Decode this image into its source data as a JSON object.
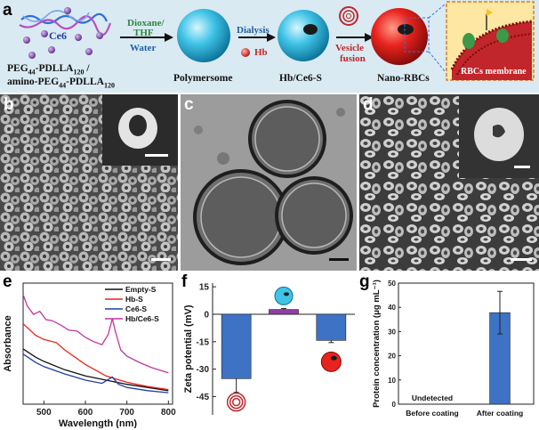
{
  "panels": {
    "a": "a",
    "b": "b",
    "c": "c",
    "d": "d",
    "e": "e",
    "f": "f",
    "g": "g"
  },
  "scheme": {
    "polymer_line1": "PEG",
    "polymer_line1_sub1": "44",
    "polymer_line1_mid": "-PDLLA",
    "polymer_line1_sub2": "120",
    "polymer_line1_end": " /",
    "polymer_line2": "amino-PEG",
    "polymer_line2_sub1": "44",
    "polymer_line2_mid": "-PDLLA",
    "polymer_line2_sub2": "120",
    "ce6": "Ce6",
    "step1_top": "Dioxane/",
    "step1_top2": "THF",
    "step1_bottom": "Water",
    "stage1": "Polymersome",
    "step2_top": "Dialysis",
    "step2_hb": "Hb",
    "stage2": "Hb/Ce6-S",
    "step3_line1": "Vesicle",
    "step3_line2": "fusion",
    "stage3": "Nano-RBCs",
    "membrane_label": "RBCs membrane"
  },
  "colors": {
    "accent_green": "#2b8a3e",
    "accent_blue": "#1f5fa6",
    "accent_red": "#c0262b",
    "bar_blue": "#3d72c4",
    "bar_purple": "#8e3fa3",
    "hbs_red": "#e8231d",
    "ce6s_blue": "#1f3fa6",
    "hbce6_magenta": "#c2359d"
  },
  "chart_data": [
    {
      "panel": "e",
      "type": "line",
      "xlabel": "Wavelength (nm)",
      "ylabel": "Absorbance",
      "xlim": [
        450,
        810
      ],
      "x_ticks": [
        500,
        600,
        700,
        800
      ],
      "y_tick_labels_shown": false,
      "series": [
        {
          "name": "Empty-S",
          "color": "#111111",
          "points": [
            [
              450,
              2.65
            ],
            [
              480,
              2.25
            ],
            [
              500,
              2.05
            ],
            [
              550,
              1.65
            ],
            [
              600,
              1.35
            ],
            [
              650,
              1.15
            ],
            [
              700,
              0.95
            ],
            [
              750,
              0.8
            ],
            [
              800,
              0.65
            ]
          ]
        },
        {
          "name": "Hb-S",
          "color": "#e8231d",
          "points": [
            [
              450,
              3.85
            ],
            [
              480,
              3.3
            ],
            [
              500,
              3.1
            ],
            [
              530,
              2.95
            ],
            [
              550,
              2.6
            ],
            [
              600,
              1.9
            ],
            [
              650,
              1.35
            ],
            [
              700,
              1.05
            ],
            [
              750,
              0.85
            ],
            [
              800,
              0.7
            ]
          ]
        },
        {
          "name": "Ce6-S",
          "color": "#1f3fa6",
          "points": [
            [
              450,
              2.4
            ],
            [
              480,
              2.0
            ],
            [
              500,
              1.8
            ],
            [
              550,
              1.45
            ],
            [
              600,
              1.15
            ],
            [
              640,
              1.0
            ],
            [
              665,
              1.3
            ],
            [
              680,
              0.95
            ],
            [
              700,
              0.8
            ],
            [
              750,
              0.65
            ],
            [
              800,
              0.55
            ]
          ]
        },
        {
          "name": "Hb/Ce6-S",
          "color": "#c2359d",
          "points": [
            [
              450,
              5.25
            ],
            [
              460,
              4.7
            ],
            [
              475,
              4.3
            ],
            [
              490,
              4.45
            ],
            [
              505,
              4.05
            ],
            [
              520,
              4.0
            ],
            [
              540,
              3.8
            ],
            [
              560,
              3.55
            ],
            [
              580,
              3.5
            ],
            [
              600,
              3.2
            ],
            [
              620,
              3.0
            ],
            [
              640,
              2.85
            ],
            [
              655,
              3.35
            ],
            [
              665,
              4.1
            ],
            [
              672,
              3.5
            ],
            [
              685,
              2.6
            ],
            [
              700,
              2.3
            ],
            [
              730,
              2.0
            ],
            [
              760,
              1.75
            ],
            [
              800,
              1.5
            ]
          ]
        }
      ]
    },
    {
      "panel": "f",
      "type": "bar",
      "ylabel": "Zeta potential (mV)",
      "ylim": [
        -55,
        17
      ],
      "y_ticks": [
        15,
        0,
        -15,
        -30,
        -45
      ],
      "categories": [
        "Nano-RBCs membrane vesicle",
        "Polymersome",
        "Nano-RBCs"
      ],
      "values": [
        -35.2,
        2.6,
        -14.3
      ],
      "errors": [
        7.5,
        0.5,
        1.2
      ],
      "bar_colors": [
        "#3d72c4",
        "#8e3fa3",
        "#3d72c4"
      ]
    },
    {
      "panel": "g",
      "type": "bar",
      "ylabel": "Protein concentration (μg mL⁻¹)",
      "ylim": [
        0,
        50
      ],
      "y_ticks": [
        0,
        10,
        20,
        30,
        40,
        50
      ],
      "categories": [
        "Before coating",
        "After coating"
      ],
      "values": [
        0,
        37.8
      ],
      "errors": [
        0,
        8.8
      ],
      "bar_labels": [
        "Undetected",
        ""
      ],
      "bar_color": "#3d72c4"
    }
  ]
}
